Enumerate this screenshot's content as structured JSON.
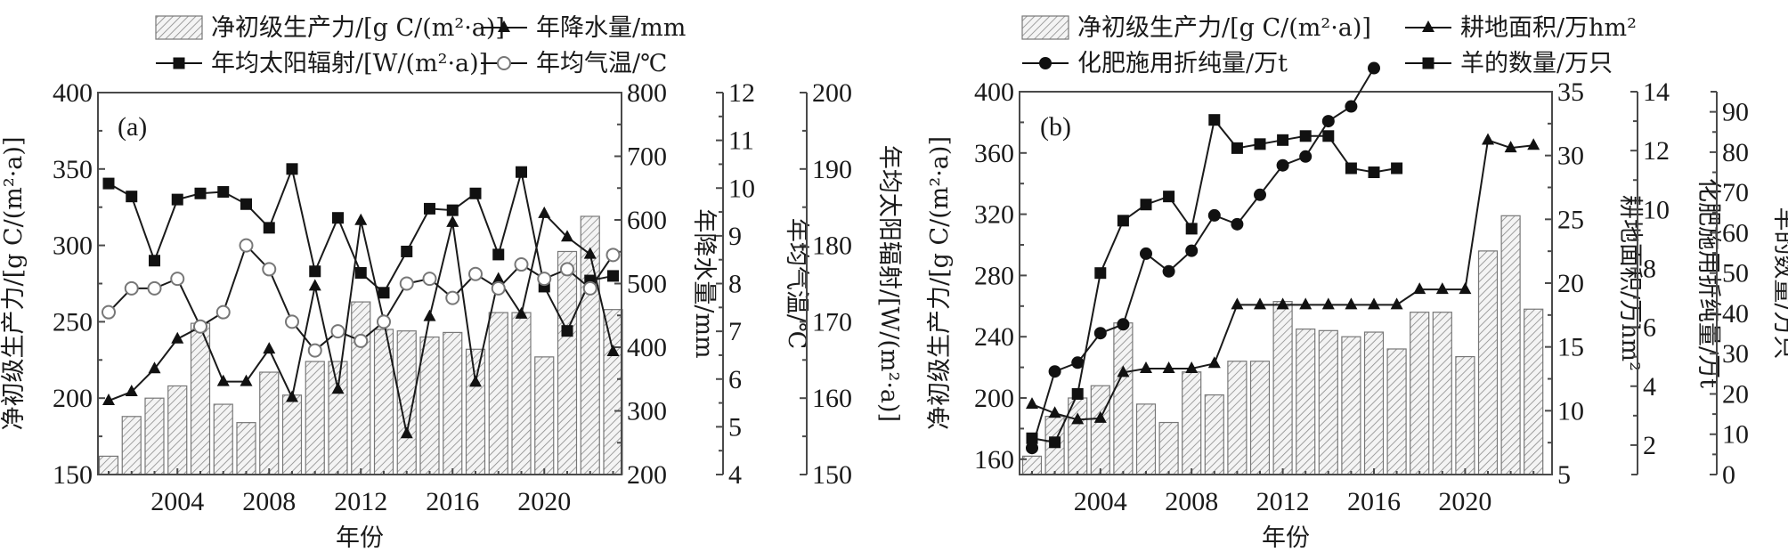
{
  "chart_data": [
    {
      "type": "bar+line",
      "panel_label": "(a)",
      "xlabel": "年份",
      "x": [
        2001,
        2002,
        2003,
        2004,
        2005,
        2006,
        2007,
        2008,
        2009,
        2010,
        2011,
        2012,
        2013,
        2014,
        2015,
        2016,
        2017,
        2018,
        2019,
        2020,
        2021,
        2022,
        2023
      ],
      "x_ticks": [
        "2004",
        "2008",
        "2012",
        "2016",
        "2020"
      ],
      "legend": [
        {
          "name": "净初级生产力/[g C/(m²·a)]",
          "marker": "hatched-bar"
        },
        {
          "name": "年降水量/mm",
          "marker": "filled-triangle"
        },
        {
          "name": "年均太阳辐射/[W/(m²·a)]",
          "marker": "filled-square"
        },
        {
          "name": "年均气温/℃",
          "marker": "open-circle"
        }
      ],
      "axes": [
        {
          "id": "npp",
          "label": "净初级生产力/[g C/(m²·a)]",
          "side": "left",
          "range": [
            150,
            400
          ],
          "ticks": [
            "150",
            "200",
            "250",
            "300",
            "350",
            "400"
          ]
        },
        {
          "id": "precip",
          "label": "年降水量/mm",
          "side": "right-1",
          "range": [
            200,
            800
          ],
          "ticks": [
            "200",
            "300",
            "400",
            "500",
            "600",
            "700",
            "800"
          ]
        },
        {
          "id": "temp",
          "label": "年均气温/℃",
          "side": "right-2",
          "range": [
            4,
            12
          ],
          "ticks": [
            "4",
            "5",
            "6",
            "7",
            "8",
            "9",
            "10",
            "11",
            "12"
          ]
        },
        {
          "id": "solar",
          "label": "年均太阳辐射/[W/(m²·a)]",
          "side": "right-3",
          "range": [
            150,
            200
          ],
          "ticks": [
            "150",
            "160",
            "170",
            "180",
            "190",
            "200"
          ]
        }
      ],
      "series": [
        {
          "name": "净初级生产力",
          "axis": "npp",
          "type": "bar",
          "values": [
            162,
            188,
            200,
            208,
            249,
            196,
            184,
            217,
            202,
            224,
            224,
            263,
            245,
            244,
            240,
            243,
            232,
            256,
            256,
            227,
            296,
            319,
            258
          ]
        },
        {
          "name": "年降水量",
          "axis": "precip",
          "type": "line",
          "marker": "triangle",
          "values": [
            316,
            330,
            366,
            413,
            432,
            346,
            346,
            397,
            321,
            496,
            334,
            599,
            441,
            264,
            448,
            596,
            345,
            507,
            452,
            610,
            573,
            546,
            393
          ]
        },
        {
          "name": "年均太阳辐射",
          "axis": "solar",
          "type": "line",
          "marker": "square",
          "values": [
            188.1,
            186.4,
            178.0,
            186.0,
            186.8,
            187.0,
            185.4,
            182.3,
            190.0,
            176.6,
            183.6,
            176.4,
            173.8,
            179.2,
            184.8,
            184.6,
            186.8,
            178.8,
            189.6,
            174.6,
            168.8,
            175.4,
            176.0
          ]
        },
        {
          "name": "年均气温",
          "axis": "temp",
          "type": "line",
          "marker": "circle",
          "values": [
            7.4,
            7.9,
            7.9,
            8.1,
            7.1,
            7.4,
            8.8,
            8.3,
            7.2,
            6.6,
            7.0,
            6.8,
            7.2,
            8.0,
            8.1,
            7.7,
            8.2,
            7.9,
            8.4,
            8.1,
            8.3,
            7.9,
            8.6
          ]
        }
      ]
    },
    {
      "type": "bar+line",
      "panel_label": "(b)",
      "xlabel": "年份",
      "x": [
        2001,
        2002,
        2003,
        2004,
        2005,
        2006,
        2007,
        2008,
        2009,
        2010,
        2011,
        2012,
        2013,
        2014,
        2015,
        2016,
        2017,
        2018,
        2019,
        2020,
        2021,
        2022,
        2023
      ],
      "x_ticks": [
        "2004",
        "2008",
        "2012",
        "2016",
        "2020"
      ],
      "legend": [
        {
          "name": "净初级生产力/[g C/(m²·a)]",
          "marker": "hatched-bar"
        },
        {
          "name": "耕地面积/万hm²",
          "marker": "filled-triangle"
        },
        {
          "name": "化肥施用折纯量/万t",
          "marker": "filled-circle"
        },
        {
          "name": "羊的数量/万只",
          "marker": "filled-square"
        }
      ],
      "axes": [
        {
          "id": "npp",
          "label": "净初级生产力/[g C/(m²·a)]",
          "side": "left",
          "range": [
            150,
            400
          ],
          "ticks": [
            "160",
            "200",
            "240",
            "280",
            "320",
            "360",
            "400"
          ]
        },
        {
          "id": "cropland",
          "label": "耕地面积/万hm²",
          "side": "right-1",
          "range": [
            5,
            35
          ],
          "ticks": [
            "5",
            "10",
            "15",
            "20",
            "25",
            "30",
            "35"
          ]
        },
        {
          "id": "fert",
          "label": "化肥施用折纯量/万t",
          "side": "right-2",
          "range": [
            1,
            14
          ],
          "ticks": [
            "2",
            "4",
            "6",
            "8",
            "10",
            "12",
            "14"
          ]
        },
        {
          "id": "sheep",
          "label": "羊的数量/万只",
          "side": "right-3",
          "range": [
            0,
            95
          ],
          "ticks": [
            "0",
            "10",
            "20",
            "30",
            "40",
            "50",
            "60",
            "70",
            "80",
            "90"
          ]
        }
      ],
      "series": [
        {
          "name": "净初级生产力",
          "axis": "npp",
          "type": "bar",
          "values": [
            162,
            188,
            200,
            208,
            249,
            196,
            184,
            217,
            202,
            224,
            224,
            263,
            245,
            244,
            240,
            243,
            232,
            256,
            256,
            227,
            296,
            319,
            258
          ]
        },
        {
          "name": "耕地面积",
          "axis": "cropland",
          "type": "line",
          "marker": "triangle",
          "values": [
            10.5,
            9.8,
            9.3,
            9.4,
            13.0,
            13.3,
            13.3,
            13.3,
            13.7,
            18.3,
            18.3,
            18.3,
            18.3,
            18.3,
            18.3,
            18.3,
            18.3,
            19.5,
            19.5,
            19.5,
            31.2,
            30.6,
            30.8
          ]
        },
        {
          "name": "化肥施用折纯量",
          "axis": "fert",
          "type": "line",
          "marker": "circle",
          "values": [
            1.9,
            4.5,
            4.8,
            5.8,
            6.1,
            8.5,
            7.9,
            8.6,
            9.8,
            9.5,
            10.5,
            11.5,
            11.8,
            13.0,
            13.5,
            14.8,
            null,
            null,
            null,
            null,
            null,
            null,
            null
          ]
        },
        {
          "name": "羊的数量",
          "axis": "sheep",
          "type": "line",
          "marker": "square",
          "values": [
            9,
            8,
            20,
            50,
            63,
            67,
            69,
            61,
            88,
            81,
            82,
            83,
            84,
            84,
            76,
            75,
            76,
            null,
            null,
            null,
            null,
            null,
            null
          ]
        }
      ]
    }
  ]
}
